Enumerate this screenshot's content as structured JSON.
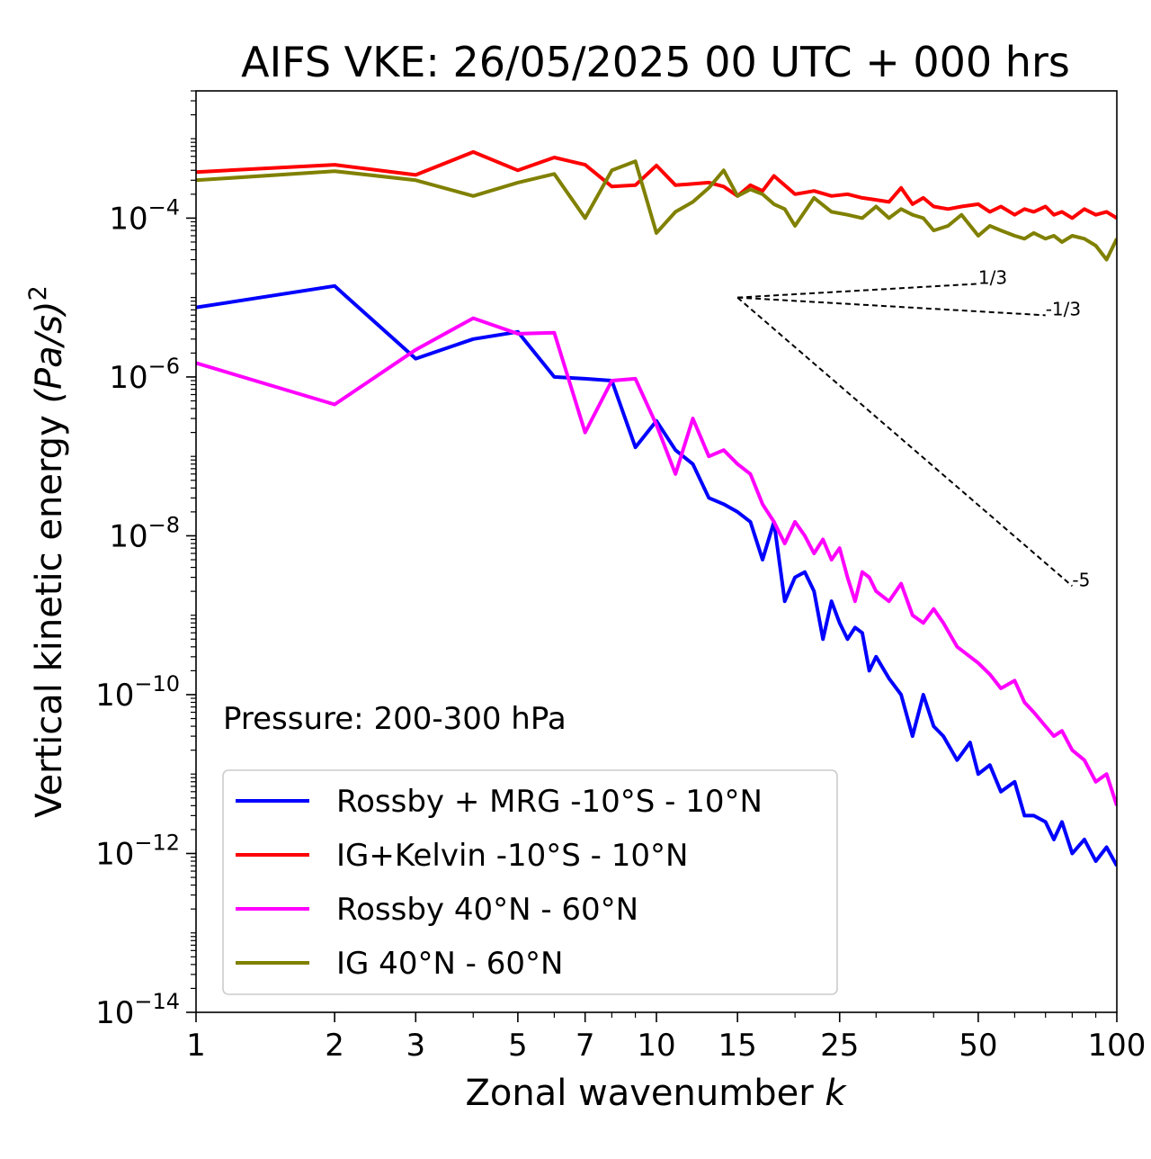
{
  "chart_data": {
    "type": "line",
    "title": "AIFS VKE: 26/05/2025 00 UTC + 000 hrs",
    "xlabel": "Zonal wavenumber",
    "xlabel_var": "k",
    "ylabel": "Vertical kinetic energy",
    "ylabel_unit": "(Pa/s)",
    "ylabel_exp": "2",
    "xscale": "log",
    "yscale": "log",
    "xlim": [
      1,
      100
    ],
    "ylim": [
      1e-14,
      0.004
    ],
    "xticks": [
      1,
      2,
      3,
      5,
      7,
      10,
      15,
      25,
      50,
      100
    ],
    "xtick_labels": [
      "1",
      "2",
      "3",
      "5",
      "7",
      "10",
      "15",
      "25",
      "50",
      "100"
    ],
    "yticks": [
      {
        "value": 1e-14,
        "exp": "−14"
      },
      {
        "value": 1e-12,
        "exp": "−12"
      },
      {
        "value": 1e-10,
        "exp": "−10"
      },
      {
        "value": 1e-08,
        "exp": "−8"
      },
      {
        "value": 1e-06,
        "exp": "−6"
      },
      {
        "value": 0.0001,
        "exp": "−4"
      }
    ],
    "ytick_base": "10",
    "grid": false,
    "legend_position": "bottom-left",
    "annotation": "Pressure: 200-300 hPa",
    "reference_lines": [
      {
        "label": "1/3",
        "x": [
          15,
          50
        ],
        "y": [
          1e-05,
          1.49e-05
        ]
      },
      {
        "label": "-1/3",
        "x": [
          15,
          70
        ],
        "y": [
          1e-05,
          5.98e-06
        ]
      },
      {
        "label": "-5",
        "x": [
          15,
          80
        ],
        "y": [
          1e-05,
          2.33e-09
        ]
      }
    ],
    "series": [
      {
        "name": "Rossby + MRG -10°S - 10°N",
        "color": "#0000ff",
        "x": [
          1,
          2,
          3,
          4,
          5,
          6,
          7,
          8,
          9,
          10,
          11,
          12,
          13,
          14,
          15,
          16,
          17,
          18,
          19,
          20,
          21,
          22,
          23,
          24,
          25,
          26,
          27,
          28,
          29,
          30,
          32,
          34,
          36,
          38,
          40,
          42,
          45,
          48,
          50,
          53,
          56,
          60,
          63,
          66,
          70,
          73,
          76,
          80,
          85,
          90,
          95,
          100
        ],
        "y": [
          7.5e-06,
          1.4e-05,
          1.7e-06,
          3e-06,
          3.7e-06,
          1e-06,
          9.5e-07,
          9e-07,
          1.3e-07,
          2.8e-07,
          1.2e-07,
          8e-08,
          3e-08,
          2.5e-08,
          2e-08,
          1.5e-08,
          5e-09,
          1.5e-08,
          1.5e-09,
          3e-09,
          3.5e-09,
          2e-09,
          5e-10,
          1.5e-09,
          8e-10,
          5e-10,
          7e-10,
          6e-10,
          2e-10,
          3e-10,
          1.6e-10,
          1e-10,
          3e-11,
          1e-10,
          4e-11,
          3e-11,
          1.5e-11,
          2.5e-11,
          1e-11,
          1.3e-11,
          6e-12,
          8e-12,
          3e-12,
          3e-12,
          2.5e-12,
          1.5e-12,
          2.5e-12,
          1e-12,
          1.5e-12,
          8e-13,
          1.2e-12,
          7e-13
        ]
      },
      {
        "name": "IG+Kelvin -10°S - 10°N",
        "color": "#ff0000",
        "x": [
          1,
          2,
          3,
          4,
          5,
          6,
          7,
          8,
          9,
          10,
          11,
          13,
          14,
          15,
          16,
          17,
          18,
          20,
          22,
          24,
          26,
          28,
          30,
          32,
          34,
          36,
          38,
          40,
          43,
          46,
          50,
          53,
          56,
          60,
          63,
          66,
          70,
          73,
          76,
          80,
          85,
          90,
          95,
          100
        ],
        "y": [
          0.00038,
          0.00047,
          0.00035,
          0.00068,
          0.0004,
          0.00058,
          0.00047,
          0.00025,
          0.00026,
          0.00046,
          0.00026,
          0.00028,
          0.00025,
          0.00019,
          0.00026,
          0.00022,
          0.00034,
          0.0002,
          0.00022,
          0.00019,
          0.0002,
          0.00018,
          0.00017,
          0.00016,
          0.00024,
          0.00015,
          0.00018,
          0.00014,
          0.00013,
          0.00014,
          0.00015,
          0.00012,
          0.00014,
          0.00011,
          0.00013,
          0.00012,
          0.00014,
          0.00011,
          0.00012,
          0.0001,
          0.00013,
          0.00011,
          0.00012,
          0.0001
        ]
      },
      {
        "name": "Rossby 40°N - 60°N",
        "color": "#ff00ff",
        "x": [
          1,
          2,
          3,
          4,
          5,
          6,
          7,
          8,
          9,
          10,
          11,
          12,
          13,
          14,
          15,
          16,
          17,
          18,
          19,
          20,
          21,
          22,
          23,
          24,
          25,
          26,
          27,
          28,
          29,
          30,
          32,
          34,
          36,
          38,
          40,
          42,
          45,
          48,
          50,
          53,
          56,
          60,
          63,
          66,
          70,
          73,
          76,
          80,
          85,
          90,
          95,
          100
        ],
        "y": [
          1.5e-06,
          4.5e-07,
          2.2e-06,
          5.5e-06,
          3.5e-06,
          3.6e-06,
          2e-07,
          9e-07,
          9.5e-07,
          2.5e-07,
          6e-08,
          3e-07,
          1e-07,
          1.2e-07,
          8e-08,
          6e-08,
          2.5e-08,
          1.5e-08,
          8e-09,
          1.5e-08,
          1e-08,
          6e-09,
          9e-09,
          5e-09,
          7e-09,
          3e-09,
          1.5e-09,
          3.5e-09,
          3e-09,
          2e-09,
          1.5e-09,
          2.5e-09,
          1e-09,
          8e-10,
          1.2e-09,
          8e-10,
          4e-10,
          3e-10,
          2.5e-10,
          1.8e-10,
          1.2e-10,
          1.5e-10,
          8e-11,
          6e-11,
          4e-11,
          3e-11,
          3.5e-11,
          2e-11,
          1.5e-11,
          8e-12,
          1e-11,
          4e-12
        ]
      },
      {
        "name": "IG 40°N - 60°N",
        "color": "#808000",
        "x": [
          1,
          2,
          3,
          4,
          5,
          6,
          7,
          8,
          9,
          10,
          11,
          12,
          13,
          14,
          15,
          16,
          17,
          18,
          19,
          20,
          22,
          24,
          26,
          28,
          30,
          32,
          34,
          36,
          38,
          40,
          43,
          46,
          50,
          53,
          56,
          60,
          63,
          66,
          70,
          73,
          76,
          80,
          85,
          90,
          95,
          100
        ],
        "y": [
          0.0003,
          0.00039,
          0.0003,
          0.00019,
          0.00028,
          0.00036,
          0.0001,
          0.0004,
          0.00052,
          6.5e-05,
          0.00012,
          0.00016,
          0.00024,
          0.0004,
          0.00019,
          0.00023,
          0.0002,
          0.00015,
          0.00013,
          8e-05,
          0.00018,
          0.00012,
          0.00011,
          0.0001,
          0.00014,
          0.0001,
          0.00013,
          0.00011,
          0.0001,
          7e-05,
          8e-05,
          0.00011,
          6e-05,
          8e-05,
          7e-05,
          6e-05,
          5.5e-05,
          6.5e-05,
          5.5e-05,
          6e-05,
          5e-05,
          6e-05,
          5.5e-05,
          4.5e-05,
          3e-05,
          5.5e-05
        ]
      }
    ]
  }
}
